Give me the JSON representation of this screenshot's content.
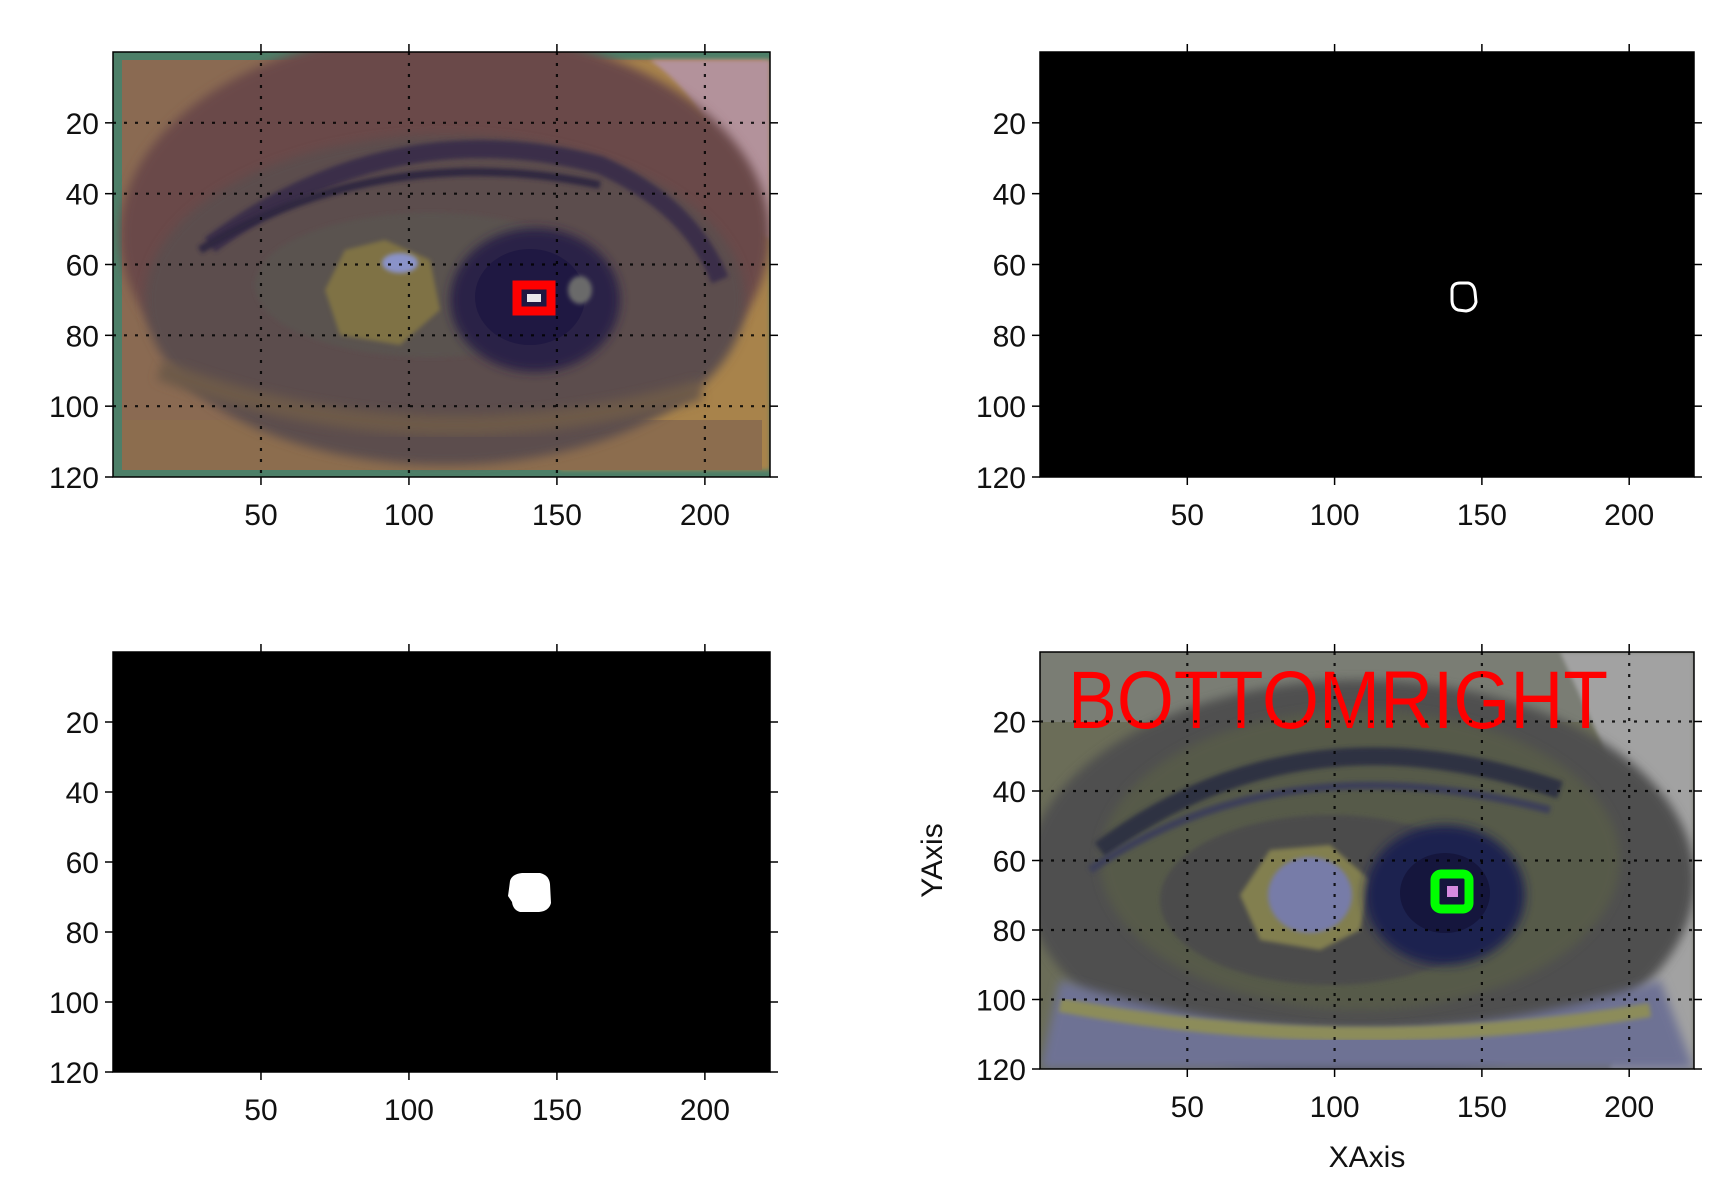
{
  "chart_data": [
    {
      "type": "image",
      "image": "eye-region-color-quantized",
      "title": "",
      "xlabel": "",
      "ylabel": "",
      "xlim": [
        0,
        222
      ],
      "ylim": [
        0,
        120
      ],
      "y_reversed": true,
      "xticks": [
        50,
        100,
        150,
        200
      ],
      "yticks": [
        20,
        40,
        60,
        80,
        100,
        120
      ],
      "xtick_labels": [
        "50",
        "100",
        "150",
        "200"
      ],
      "ytick_labels": [
        "20",
        "40",
        "60",
        "80",
        "100",
        "120"
      ],
      "grid": true,
      "marker": {
        "shape": "rectangle",
        "color": "#ff0000",
        "x": [
          136,
          149
        ],
        "y": [
          66,
          74
        ]
      }
    },
    {
      "type": "image",
      "image": "binary-pupil-contour",
      "title": "",
      "xlabel": "",
      "ylabel": "",
      "xlim": [
        0,
        222
      ],
      "ylim": [
        0,
        120
      ],
      "y_reversed": true,
      "xticks": [
        50,
        100,
        150,
        200
      ],
      "yticks": [
        20,
        40,
        60,
        80,
        100,
        120
      ],
      "xtick_labels": [
        "50",
        "100",
        "150",
        "200"
      ],
      "ytick_labels": [
        "20",
        "40",
        "60",
        "80",
        "100",
        "120"
      ],
      "grid": true,
      "marker": {
        "shape": "contour",
        "color": "#ffffff",
        "x": [
          137,
          147
        ],
        "y": [
          65,
          74
        ]
      }
    },
    {
      "type": "image",
      "image": "binary-pupil-mask",
      "title": "",
      "xlabel": "",
      "ylabel": "",
      "xlim": [
        0,
        222
      ],
      "ylim": [
        0,
        120
      ],
      "y_reversed": true,
      "xticks": [
        50,
        100,
        150,
        200
      ],
      "yticks": [
        20,
        40,
        60,
        80,
        100,
        120
      ],
      "xtick_labels": [
        "50",
        "100",
        "150",
        "200"
      ],
      "ytick_labels": [
        "20",
        "40",
        "60",
        "80",
        "100",
        "120"
      ],
      "grid": false,
      "marker": {
        "shape": "filled-blob",
        "color": "#ffffff",
        "x": [
          134,
          147
        ],
        "y": [
          66,
          75
        ]
      }
    },
    {
      "type": "image",
      "image": "eye-region-with-detected-pupil",
      "title": "",
      "xlabel": "XAxis",
      "ylabel": "YAxis",
      "xlim": [
        0,
        222
      ],
      "ylim": [
        0,
        120
      ],
      "y_reversed": true,
      "xticks": [
        50,
        100,
        150,
        200
      ],
      "yticks": [
        20,
        40,
        60,
        80,
        100,
        120
      ],
      "xtick_labels": [
        "50",
        "100",
        "150",
        "200"
      ],
      "ytick_labels": [
        "20",
        "40",
        "60",
        "80",
        "100",
        "120"
      ],
      "grid": true,
      "annotation": {
        "text": "BOTTOMRIGHT",
        "color": "#ff0000",
        "x": 10,
        "y": 22
      },
      "marker": {
        "shape": "square-outline",
        "color": "#00ff00",
        "x": [
          135,
          146
        ],
        "y": [
          64,
          74
        ]
      }
    }
  ]
}
